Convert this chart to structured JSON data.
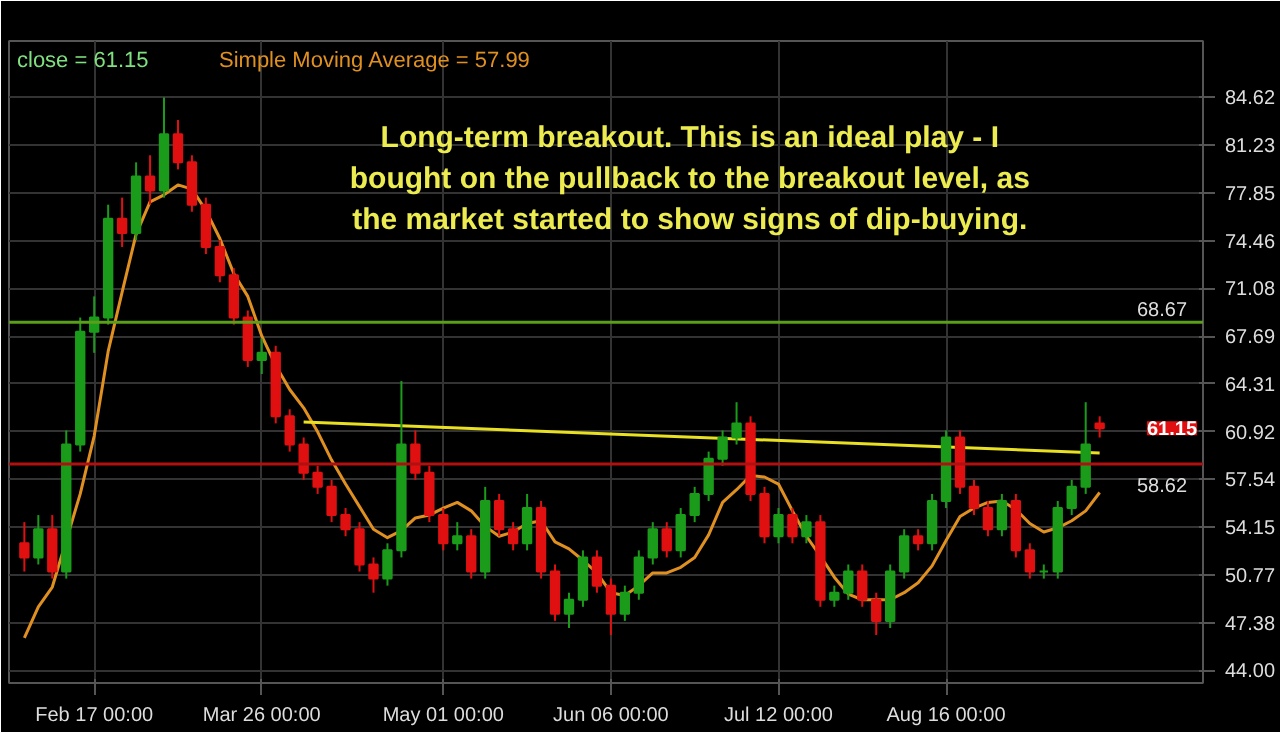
{
  "chart_data": {
    "type": "candlestick",
    "annotations": [
      "Long-term breakout. This is an ideal play - I bought on the pullback to the breakout level, as the market started to show signs of dip-buying.",
      "close = 61.15",
      "Simple Moving Average = 57.99",
      "61.15"
    ],
    "categories": [
      null,
      null,
      null,
      null,
      null,
      "Feb 17 00:00",
      null,
      null,
      null,
      null,
      null,
      null,
      null,
      null,
      null,
      null,
      null,
      "Mar 26 00:00",
      null,
      null,
      null,
      null,
      null,
      null,
      null,
      null,
      null,
      null,
      null,
      null,
      "May 01 00:00",
      null,
      null,
      null,
      null,
      null,
      null,
      null,
      null,
      null,
      null,
      null,
      "Jun 06 00:00",
      null,
      null,
      null,
      null,
      null,
      null,
      null,
      null,
      null,
      null,
      null,
      "Jul 12 00:00",
      null,
      null,
      null,
      null,
      null,
      null,
      null,
      null,
      null,
      null,
      null,
      "Aug 16 00:00",
      null,
      null,
      null,
      null,
      null,
      null,
      null,
      null,
      null,
      null,
      null
    ],
    "ohlc": [
      [
        53,
        54.5,
        51,
        52
      ],
      [
        52,
        55,
        51.5,
        54
      ],
      [
        54,
        55,
        50.5,
        51
      ],
      [
        51,
        61,
        50.5,
        60
      ],
      [
        60,
        69,
        59.5,
        68
      ],
      [
        68,
        70.5,
        66.5,
        69
      ],
      [
        69,
        77,
        68.5,
        76
      ],
      [
        76,
        77.5,
        74,
        75
      ],
      [
        75,
        80,
        74.5,
        79
      ],
      [
        79,
        80.5,
        77,
        78
      ],
      [
        78,
        84.6,
        77.5,
        82
      ],
      [
        82,
        83,
        79.5,
        80
      ],
      [
        80,
        80.5,
        76.5,
        77
      ],
      [
        77,
        77.5,
        73.5,
        74
      ],
      [
        74,
        74.5,
        71.5,
        72
      ],
      [
        72,
        72.5,
        68.5,
        69
      ],
      [
        69,
        69.5,
        65.5,
        66
      ],
      [
        66,
        67.5,
        65,
        66.5
      ],
      [
        66.5,
        67,
        61.5,
        62
      ],
      [
        62,
        62.5,
        59.5,
        60
      ],
      [
        60,
        60.5,
        57.5,
        58
      ],
      [
        58,
        58.5,
        56.5,
        57
      ],
      [
        57,
        57.5,
        54.5,
        55
      ],
      [
        55,
        55.5,
        53.5,
        54
      ],
      [
        54,
        54.5,
        51,
        51.5
      ],
      [
        51.5,
        52,
        49.5,
        50.5
      ],
      [
        50.5,
        53,
        50,
        52.5
      ],
      [
        52.5,
        64.5,
        52,
        60
      ],
      [
        60,
        61,
        57.5,
        58
      ],
      [
        58,
        58.5,
        54.5,
        55
      ],
      [
        55,
        55.5,
        52.5,
        53
      ],
      [
        53,
        54.5,
        52.5,
        53.5
      ],
      [
        53.5,
        54,
        50.5,
        51
      ],
      [
        51,
        57,
        50.5,
        56
      ],
      [
        56,
        56.5,
        53.5,
        54
      ],
      [
        54,
        54.5,
        52.5,
        53
      ],
      [
        53,
        56.5,
        52.5,
        55.5
      ],
      [
        55.5,
        56,
        50.5,
        51
      ],
      [
        51,
        51.5,
        47.5,
        48
      ],
      [
        48,
        49.5,
        47,
        49
      ],
      [
        49,
        52.5,
        48.5,
        52
      ],
      [
        52,
        52.5,
        49.5,
        50
      ],
      [
        50,
        50.5,
        46.5,
        48
      ],
      [
        48,
        50,
        47.5,
        49.5
      ],
      [
        49.5,
        52.5,
        49,
        52
      ],
      [
        52,
        54.5,
        51.5,
        54
      ],
      [
        54,
        54.5,
        52,
        52.5
      ],
      [
        52.5,
        55.5,
        52,
        55
      ],
      [
        55,
        57,
        54.5,
        56.5
      ],
      [
        56.5,
        59.5,
        56,
        59
      ],
      [
        59,
        61,
        58.5,
        60.5
      ],
      [
        60.5,
        63,
        60,
        61.5
      ],
      [
        61.5,
        62,
        56,
        56.5
      ],
      [
        56.5,
        57,
        53,
        53.5
      ],
      [
        53.5,
        55.5,
        53,
        55
      ],
      [
        55,
        55.5,
        53,
        53.5
      ],
      [
        53.5,
        55,
        53,
        54.5
      ],
      [
        54.5,
        55,
        48.5,
        49
      ],
      [
        49,
        50,
        48.5,
        49.5
      ],
      [
        49.5,
        51.5,
        49,
        51
      ],
      [
        51,
        51.5,
        48.5,
        49
      ],
      [
        49,
        49.5,
        46.5,
        47.5
      ],
      [
        47.5,
        51.5,
        47,
        51
      ],
      [
        51,
        54,
        50.5,
        53.5
      ],
      [
        53.5,
        54,
        52.5,
        53
      ],
      [
        53,
        56.5,
        52.5,
        56
      ],
      [
        56,
        61,
        55.5,
        60.5
      ],
      [
        60.5,
        61,
        56.5,
        57
      ],
      [
        57,
        57.5,
        55,
        55.5
      ],
      [
        55.5,
        56,
        53.5,
        54
      ],
      [
        54,
        56.5,
        53.5,
        56
      ],
      [
        56,
        56.5,
        52,
        52.5
      ],
      [
        52.5,
        53,
        50.5,
        51
      ],
      [
        51,
        51.5,
        50.5,
        51
      ],
      [
        51,
        56,
        50.5,
        55.5
      ],
      [
        55.5,
        57.5,
        55,
        57
      ],
      [
        57,
        63,
        56.5,
        60
      ],
      [
        61.5,
        62,
        60.5,
        61.15
      ]
    ],
    "colors": [
      "#e01010",
      "#1a9c1a",
      "#e01010",
      "#1a9c1a",
      "#1a9c1a",
      "#1a9c1a",
      "#1a9c1a",
      "#e01010",
      "#1a9c1a",
      "#e01010",
      "#1a9c1a",
      "#e01010",
      "#e01010",
      "#e01010",
      "#e01010",
      "#e01010",
      "#e01010",
      "#1a9c1a",
      "#e01010",
      "#e01010",
      "#e01010",
      "#e01010",
      "#e01010",
      "#e01010",
      "#e01010",
      "#e01010",
      "#1a9c1a",
      "#1a9c1a",
      "#e01010",
      "#e01010",
      "#e01010",
      "#1a9c1a",
      "#e01010",
      "#1a9c1a",
      "#e01010",
      "#e01010",
      "#1a9c1a",
      "#e01010",
      "#e01010",
      "#1a9c1a",
      "#1a9c1a",
      "#e01010",
      "#e01010",
      "#1a9c1a",
      "#1a9c1a",
      "#1a9c1a",
      "#e01010",
      "#1a9c1a",
      "#1a9c1a",
      "#1a9c1a",
      "#1a9c1a",
      "#1a9c1a",
      "#e01010",
      "#e01010",
      "#1a9c1a",
      "#e01010",
      "#1a9c1a",
      "#e01010",
      "#1a9c1a",
      "#1a9c1a",
      "#e01010",
      "#e01010",
      "#1a9c1a",
      "#1a9c1a",
      "#e01010",
      "#1a9c1a",
      "#1a9c1a",
      "#e01010",
      "#e01010",
      "#e01010",
      "#1a9c1a",
      "#e01010",
      "#e01010",
      "#1a9c1a",
      "#1a9c1a",
      "#1a9c1a",
      "#1a9c1a",
      "#e01010"
    ],
    "series": [
      {
        "type": "line",
        "color": "#e09020",
        "values": [
          46.3,
          48.5,
          49.9,
          null,
          56.5,
          60.6,
          66.6,
          70.8,
          74.9,
          77.2,
          77.7,
          78.4,
          78.1,
          76.6,
          74.6,
          72.1,
          70.5,
          67.7,
          65.6,
          63.9,
          62.6,
          60.9,
          58.9,
          57.2,
          55.6,
          54.0,
          53.4,
          53.9,
          54.8,
          55.0,
          55.5,
          55.9,
          55.3,
          54.2,
          53.5,
          53.8,
          54.4,
          54.6,
          53.1,
          52.6,
          51.8,
          50.9,
          49.5,
          49.3,
          50.0,
          50.9,
          50.9,
          51.3,
          52.0,
          53.6,
          55.9,
          56.8,
          57.8,
          57.7,
          57.2,
          55.3,
          53.5,
          52.1,
          50.6,
          49.4,
          49.0,
          49.0,
          49.0,
          49.5,
          50.2,
          51.4,
          53.2,
          54.9,
          55.5,
          55.9,
          56.0,
          55.4,
          54.4,
          53.8,
          54.1,
          54.6,
          55.3,
          56.6
        ]
      },
      {
        "type": "line",
        "color": "#e8e020",
        "values": [
          null,
          null,
          null,
          null,
          null,
          null,
          null,
          null,
          null,
          null,
          null,
          null,
          null,
          null,
          null,
          null,
          null,
          null,
          null,
          null,
          61.6,
          null,
          null,
          null,
          null,
          null,
          null,
          null,
          null,
          null,
          null,
          null,
          null,
          null,
          null,
          null,
          null,
          null,
          null,
          null,
          null,
          null,
          null,
          null,
          null,
          null,
          null,
          null,
          null,
          null,
          null,
          null,
          null,
          null,
          null,
          null,
          null,
          null,
          null,
          null,
          null,
          null,
          null,
          null,
          null,
          null,
          null,
          null,
          null,
          null,
          null,
          null,
          null,
          null,
          null,
          null,
          null,
          59.4
        ]
      }
    ],
    "ref_lines": [
      {
        "axis": "y",
        "value": 68.67,
        "label": "68.67",
        "color": "#5a9e1a"
      },
      {
        "axis": "y",
        "value": 58.62,
        "label": "58.62",
        "color": "#b01010"
      }
    ],
    "ylim": [
      43.1,
      88.6
    ],
    "yticks": [
      {
        "value": 44,
        "label": "44.00"
      },
      47.38,
      50.77,
      54.15,
      57.54,
      60.92,
      64.31,
      67.69,
      71.08,
      74.46,
      77.85,
      81.23,
      84.62
    ],
    "grid": true
  }
}
